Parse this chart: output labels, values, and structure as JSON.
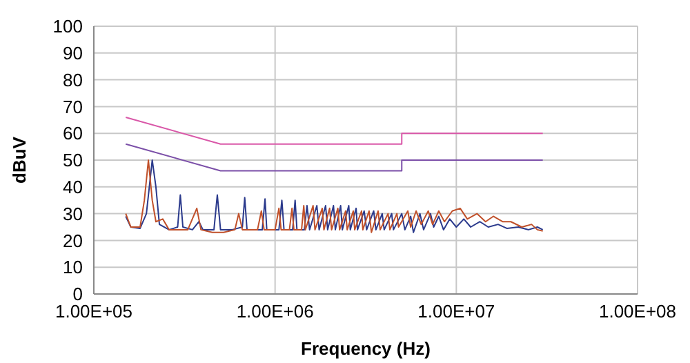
{
  "chart_data": {
    "type": "line",
    "xlabel": "Frequency (Hz)",
    "ylabel": "dBuV",
    "log": "x",
    "grid": true,
    "xlim": [
      100000,
      100000000
    ],
    "xticks": [
      {
        "value": 100000,
        "label": "1.00E+05"
      },
      {
        "value": 1000000,
        "label": "1.00E+06"
      },
      {
        "value": 10000000,
        "label": "1.00E+07"
      },
      {
        "value": 100000000,
        "label": "1.00E+08"
      }
    ],
    "ylim": [
      0,
      100
    ],
    "yticks": [
      0,
      10,
      20,
      30,
      40,
      50,
      60,
      70,
      80,
      90,
      100
    ],
    "series": [
      {
        "color": "#d957a8",
        "x": [
          150000,
          500000,
          5000000,
          5000000,
          30000000
        ],
        "values": [
          66,
          56,
          56,
          60,
          60
        ]
      },
      {
        "color": "#7b4fa8",
        "x": [
          150000,
          500000,
          5000000,
          5000000,
          30000000
        ],
        "values": [
          56,
          46,
          46,
          50,
          50
        ]
      },
      {
        "color": "#2b3a8c",
        "x": [
          150000,
          160000,
          180000,
          195000,
          210000,
          220000,
          230000,
          260000,
          290000,
          300000,
          310000,
          350000,
          380000,
          400000,
          460000,
          480000,
          500000,
          580000,
          660000,
          680000,
          700000,
          850000,
          880000,
          900000,
          1050000,
          1090000,
          1120000,
          1250000,
          1290000,
          1320000,
          1450000,
          1500000,
          1550000,
          1700000,
          1750000,
          1900000,
          1950000,
          2100000,
          2150000,
          2300000,
          2350000,
          2550000,
          2600000,
          2800000,
          2850000,
          3100000,
          3200000,
          3500000,
          3600000,
          3900000,
          4000000,
          4400000,
          4500000,
          5000000,
          5200000,
          5600000,
          5800000,
          6300000,
          6600000,
          7200000,
          7500000,
          8000000,
          8500000,
          9200000,
          10000000,
          11000000,
          12000000,
          13500000,
          15000000,
          17000000,
          19000000,
          22000000,
          25000000,
          28000000,
          30000000
        ],
        "values": [
          29,
          25,
          24.5,
          30,
          50,
          40,
          26,
          24,
          25,
          37,
          25,
          24,
          27,
          24,
          24,
          37,
          24,
          24,
          25,
          36,
          24,
          24,
          35.5,
          24,
          24,
          35,
          24,
          24,
          35,
          24,
          24,
          33,
          24,
          33,
          24,
          33,
          24,
          33,
          24,
          33,
          24,
          33,
          24,
          32,
          24,
          31,
          24,
          31,
          24,
          30,
          24,
          30,
          24,
          30,
          24,
          29,
          23,
          30,
          24,
          30,
          25,
          29,
          24,
          28,
          25,
          28,
          25,
          27,
          25,
          26,
          24.5,
          25,
          24,
          25,
          24
        ]
      },
      {
        "color": "#c0502a",
        "x": [
          150000,
          160000,
          180000,
          190000,
          200000,
          210000,
          220000,
          240000,
          260000,
          290000,
          330000,
          370000,
          390000,
          450000,
          520000,
          600000,
          630000,
          660000,
          800000,
          840000,
          870000,
          1000000,
          1050000,
          1080000,
          1200000,
          1240000,
          1270000,
          1400000,
          1440000,
          1470000,
          1620000,
          1660000,
          1820000,
          1860000,
          2000000,
          2050000,
          2220000,
          2270000,
          2450000,
          2500000,
          2700000,
          2750000,
          3000000,
          3050000,
          3300000,
          3400000,
          3700000,
          3800000,
          4200000,
          4300000,
          4700000,
          4800000,
          5400000,
          5600000,
          6000000,
          6400000,
          7000000,
          7400000,
          8000000,
          8600000,
          9500000,
          10500000,
          11500000,
          13000000,
          14500000,
          16000000,
          18000000,
          20000000,
          23000000,
          26000000,
          28000000,
          30000000
        ],
        "values": [
          30,
          25,
          25,
          35,
          50,
          35,
          27,
          28,
          24,
          24,
          24,
          32,
          24,
          23,
          23,
          24,
          30,
          24,
          24,
          31,
          24,
          24,
          32,
          24,
          24,
          32,
          24,
          24,
          33,
          24,
          33,
          24,
          32,
          24,
          32,
          24,
          32,
          24,
          31,
          24,
          31,
          24,
          31,
          24,
          31,
          23,
          31,
          24,
          30,
          24,
          30,
          25,
          31,
          25,
          31,
          26,
          31,
          26,
          31,
          27,
          31,
          32,
          28,
          30,
          27,
          29,
          27,
          27,
          25,
          26,
          24,
          23.5
        ]
      }
    ]
  }
}
